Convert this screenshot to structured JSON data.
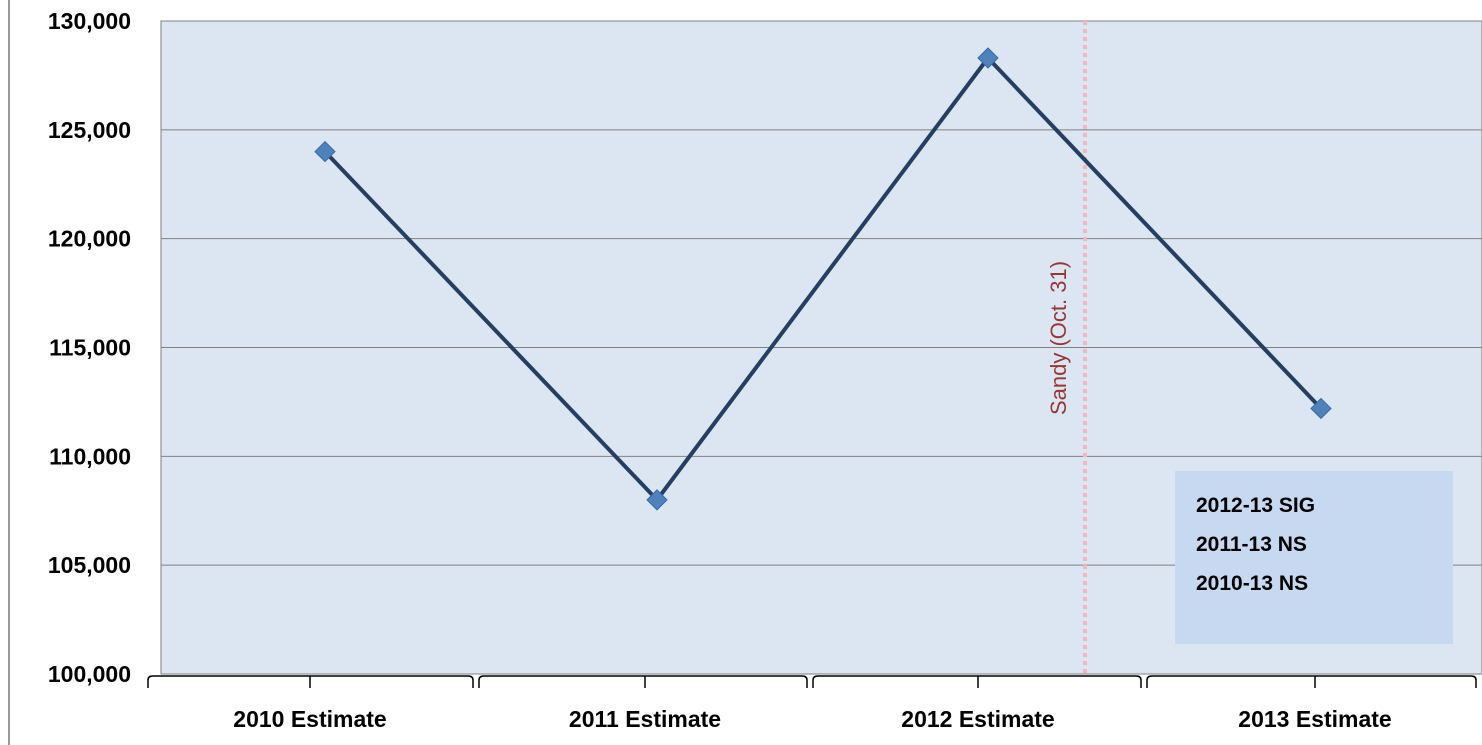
{
  "chart_data": {
    "type": "line",
    "categories": [
      "2010 Estimate",
      "2011 Estimate",
      "2012 Estimate",
      "2013 Estimate"
    ],
    "series": [
      {
        "values": [
          124000,
          108000,
          128300,
          112200
        ]
      }
    ],
    "ylim": [
      100000,
      130000
    ],
    "yticks": [
      100000,
      105000,
      110000,
      115000,
      120000,
      125000,
      130000
    ],
    "ytick_labels": [
      "100,000",
      "105,000",
      "110,000",
      "115,000",
      "120,000",
      "125,000",
      "130,000"
    ],
    "grid": true,
    "event_line": {
      "label": "Sandy (Oct. 31)",
      "position_between": [
        "2012 Estimate",
        "2013 Estimate"
      ]
    },
    "annotation_box": [
      "2012-13 SIG",
      "2011-13 NS",
      "2010-13 NS"
    ],
    "colors": {
      "plot_background": "#DCE6F2",
      "line": "#243F60",
      "marker": "#4F81BD",
      "event_line": "#F2B8B4",
      "event_text": "#953735",
      "annotation_background": "#C6D9F1"
    }
  }
}
